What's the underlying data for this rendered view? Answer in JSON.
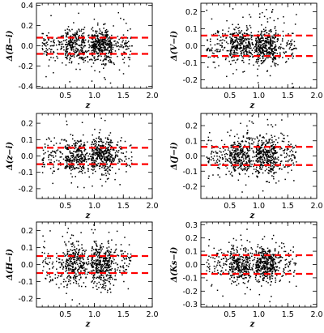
{
  "chart_data": [
    {
      "type": "scatter",
      "xlabel": "z",
      "ylabel": "Δ(B−i)",
      "xlim": [
        0.0,
        2.0
      ],
      "ylim": [
        -0.42,
        0.42
      ],
      "xticks": [
        "0.5",
        "1.0",
        "1.5",
        "2.0"
      ],
      "yticks": [
        "0.4",
        "0.2",
        "0.0",
        "-0.2",
        "-0.4"
      ],
      "ytick_values": [
        0.4,
        0.2,
        0.0,
        -0.2,
        -0.4
      ],
      "hlines": [
        0.08,
        -0.08
      ],
      "line_color": "#ff0000",
      "point_color": "#000000",
      "scatter_profile": {
        "spread": 0.08,
        "outlier_spread": 0.18,
        "n": 820
      }
    },
    {
      "type": "scatter",
      "xlabel": "z",
      "ylabel": "Δ(V−i)",
      "xlim": [
        0.0,
        2.0
      ],
      "ylim": [
        -0.25,
        0.25
      ],
      "xticks": [
        "0.5",
        "1.0",
        "1.5",
        "2.0"
      ],
      "yticks": [
        "0.2",
        "0.1",
        "0.0",
        "-0.1",
        "-0.2"
      ],
      "ytick_values": [
        0.2,
        0.1,
        0.0,
        -0.1,
        -0.2
      ],
      "hlines": [
        0.06,
        -0.06
      ],
      "line_color": "#ff0000",
      "point_color": "#000000",
      "scatter_profile": {
        "spread": 0.05,
        "outlier_spread": 0.11,
        "n": 820
      }
    },
    {
      "type": "scatter",
      "xlabel": "z",
      "ylabel": "Δ(z−i)",
      "xlim": [
        0.0,
        2.0
      ],
      "ylim": [
        -0.26,
        0.26
      ],
      "xticks": [
        "0.5",
        "1.0",
        "1.5",
        "2.0"
      ],
      "yticks": [
        "0.2",
        "0.1",
        "0.0",
        "-0.1",
        "-0.2"
      ],
      "ytick_values": [
        0.2,
        0.1,
        0.0,
        -0.1,
        -0.2
      ],
      "hlines": [
        0.05,
        -0.05
      ],
      "line_color": "#ff0000",
      "point_color": "#000000",
      "scatter_profile": {
        "spread": 0.05,
        "outlier_spread": 0.11,
        "n": 820
      }
    },
    {
      "type": "scatter",
      "xlabel": "z",
      "ylabel": "Δ(J−i)",
      "xlim": [
        0.0,
        2.0
      ],
      "ylim": [
        -0.28,
        0.28
      ],
      "xticks": [
        "0.5",
        "1.0",
        "1.5",
        "2.0"
      ],
      "yticks": [
        "0.2",
        "0.1",
        "0.0",
        "-0.1",
        "-0.2"
      ],
      "ytick_values": [
        0.2,
        0.1,
        0.0,
        -0.1,
        -0.2
      ],
      "hlines": [
        0.06,
        -0.06
      ],
      "line_color": "#ff0000",
      "point_color": "#000000",
      "scatter_profile": {
        "spread": 0.06,
        "outlier_spread": 0.12,
        "n": 820
      }
    },
    {
      "type": "scatter",
      "xlabel": "z",
      "ylabel": "Δ(H−i)",
      "xlim": [
        0.0,
        2.0
      ],
      "ylim": [
        -0.25,
        0.25
      ],
      "xticks": [
        "0.5",
        "1.0",
        "1.5",
        "2.0"
      ],
      "yticks": [
        "0.2",
        "0.1",
        "0.0",
        "-0.1",
        "-0.2"
      ],
      "ytick_values": [
        0.2,
        0.1,
        0.0,
        -0.1,
        -0.2
      ],
      "hlines": [
        0.05,
        -0.05
      ],
      "line_color": "#ff0000",
      "point_color": "#000000",
      "scatter_profile": {
        "spread": 0.06,
        "outlier_spread": 0.12,
        "n": 820
      }
    },
    {
      "type": "scatter",
      "xlabel": "z",
      "ylabel": "Δ(Ks−i)",
      "xlim": [
        0.0,
        2.0
      ],
      "ylim": [
        -0.32,
        0.32
      ],
      "xticks": [
        "0.5",
        "1.0",
        "1.5",
        "2.0"
      ],
      "yticks": [
        "0.3",
        "0.2",
        "0.1",
        "0.0",
        "-0.1",
        "-0.2",
        "-0.3"
      ],
      "ytick_values": [
        0.3,
        0.2,
        0.1,
        0.0,
        -0.1,
        -0.2,
        -0.3
      ],
      "hlines": [
        0.07,
        -0.07
      ],
      "line_color": "#ff0000",
      "point_color": "#000000",
      "scatter_profile": {
        "spread": 0.06,
        "outlier_spread": 0.13,
        "n": 820
      }
    }
  ]
}
